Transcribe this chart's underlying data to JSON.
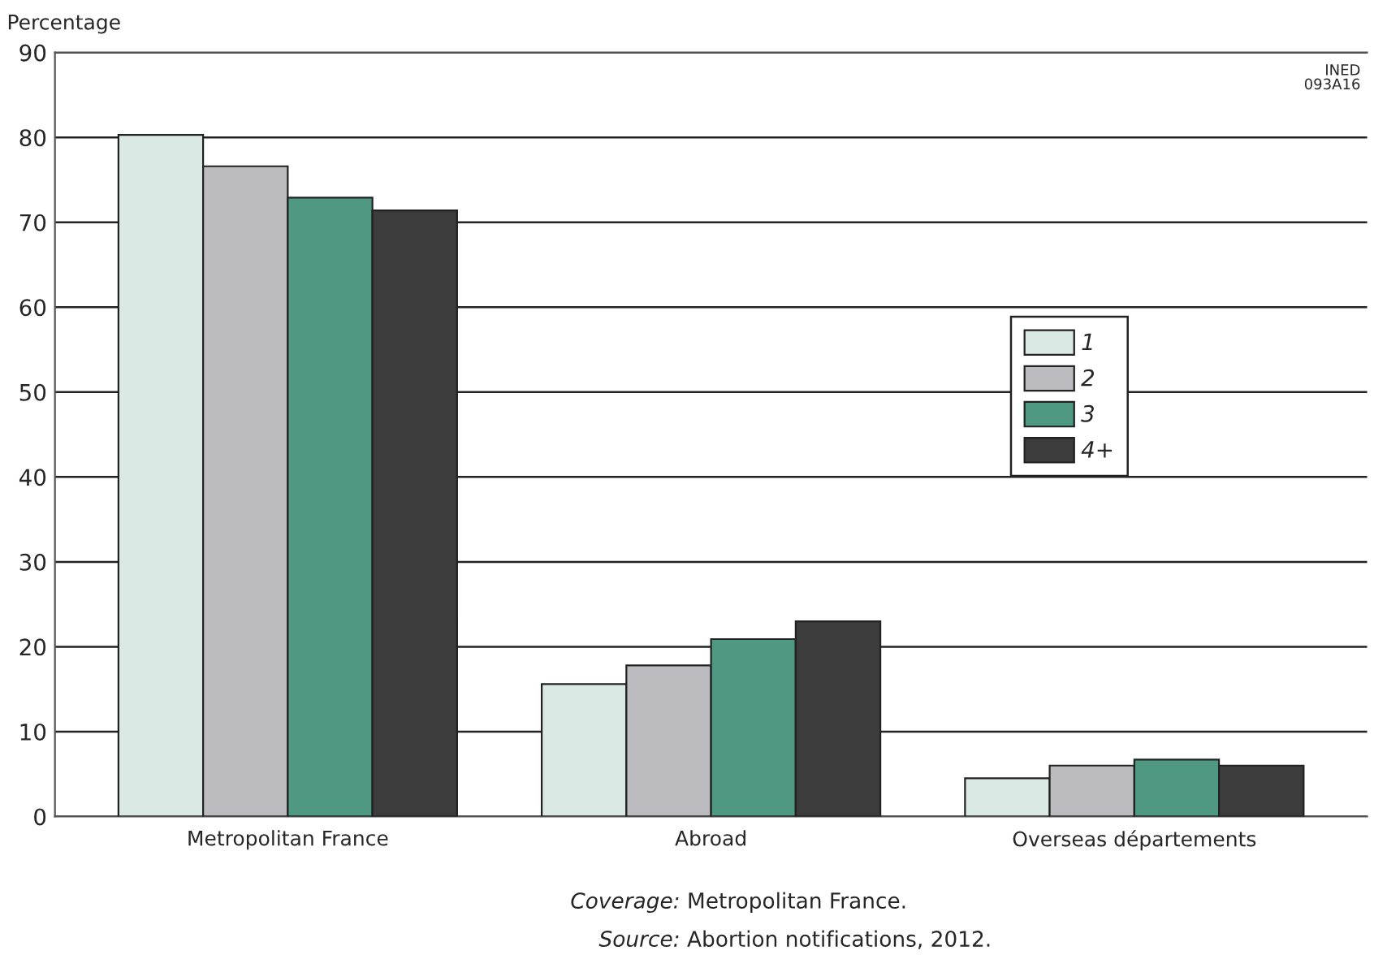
{
  "chart_data": {
    "type": "bar",
    "ylabel": "Percentage",
    "categories": [
      "Metropolitan France",
      "Abroad",
      "Overseas départements"
    ],
    "series": [
      {
        "name": "1",
        "color": "#dbe9e5",
        "values": [
          80.3,
          15.6,
          4.5
        ]
      },
      {
        "name": "2",
        "color": "#bcbcc0",
        "values": [
          76.6,
          17.8,
          6.0
        ]
      },
      {
        "name": "3",
        "color": "#4f9882",
        "values": [
          72.9,
          20.9,
          6.7
        ]
      },
      {
        "name": "4+",
        "color": "#3c3c3c",
        "values": [
          71.4,
          23.0,
          6.0
        ]
      }
    ],
    "ylim": [
      0,
      90
    ],
    "yticks": [
      0,
      10,
      20,
      30,
      40,
      50,
      60,
      70,
      80,
      90
    ],
    "grid": "y",
    "legend": "right",
    "annotations": [
      "INED\n093A16",
      "Coverage: Metropolitan France.",
      "Source: Abortion notifications, 2012."
    ]
  }
}
